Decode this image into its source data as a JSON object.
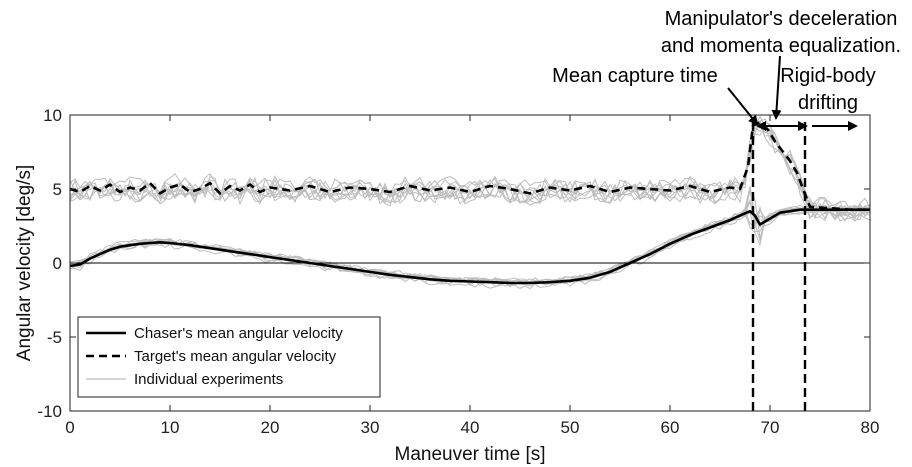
{
  "chart_data": {
    "type": "line",
    "title": "",
    "xlabel": "Maneuver time [s]",
    "ylabel": "Angular velocity [deg/s]",
    "xlim": [
      0,
      80
    ],
    "ylim": [
      -10,
      10
    ],
    "xticks": [
      0,
      10,
      20,
      30,
      40,
      50,
      60,
      70,
      80
    ],
    "yticks": [
      -10,
      -5,
      0,
      5,
      10
    ],
    "grid": false,
    "legend_position": "bottom-left",
    "legend": [
      "Chaser's mean angular velocity",
      "Target's mean angular velocity",
      "Individual experiments"
    ],
    "series": [
      {
        "name": "Chaser's mean angular velocity",
        "style": "solid",
        "color": "#000000",
        "x": [
          0,
          1,
          2,
          3,
          4,
          5,
          6,
          7,
          8,
          9,
          10,
          12,
          14,
          16,
          18,
          20,
          22,
          24,
          26,
          28,
          30,
          32,
          34,
          36,
          38,
          40,
          42,
          44,
          46,
          48,
          50,
          52,
          54,
          56,
          58,
          60,
          62,
          64,
          66,
          67,
          68,
          68.5,
          69,
          70,
          71,
          72,
          73,
          74,
          76,
          78,
          80
        ],
        "y": [
          -0.2,
          -0.1,
          0.3,
          0.6,
          0.9,
          1.1,
          1.2,
          1.3,
          1.35,
          1.4,
          1.35,
          1.2,
          1.0,
          0.8,
          0.6,
          0.4,
          0.2,
          0.0,
          -0.2,
          -0.4,
          -0.6,
          -0.8,
          -0.95,
          -1.1,
          -1.2,
          -1.25,
          -1.3,
          -1.35,
          -1.35,
          -1.3,
          -1.2,
          -1.0,
          -0.6,
          0.0,
          0.6,
          1.3,
          1.9,
          2.4,
          2.9,
          3.2,
          3.5,
          3.2,
          2.6,
          3.0,
          3.4,
          3.5,
          3.6,
          3.6,
          3.6,
          3.6,
          3.6
        ]
      },
      {
        "name": "Target's mean angular velocity",
        "style": "dashed",
        "color": "#000000",
        "x": [
          0,
          1,
          2,
          3,
          4,
          5,
          6,
          7,
          8,
          9,
          10,
          11,
          12,
          13,
          14,
          15,
          16,
          17,
          18,
          19,
          20,
          22,
          24,
          26,
          28,
          30,
          32,
          34,
          36,
          38,
          40,
          42,
          44,
          46,
          48,
          50,
          52,
          54,
          56,
          58,
          60,
          62,
          64,
          66,
          67,
          67.8,
          68.3,
          69,
          69.8,
          70.5,
          71.2,
          72,
          72.7,
          73.3,
          74,
          76,
          78,
          80
        ],
        "y": [
          5.0,
          4.8,
          5.2,
          4.9,
          5.3,
          4.8,
          5.1,
          4.9,
          5.4,
          4.7,
          5.1,
          5.3,
          4.8,
          5.0,
          5.4,
          4.7,
          5.2,
          4.9,
          5.3,
          4.8,
          5.1,
          4.9,
          5.2,
          4.8,
          5.1,
          5.0,
          4.8,
          5.2,
          4.9,
          5.1,
          4.8,
          5.2,
          5.0,
          4.7,
          5.1,
          4.9,
          5.2,
          4.8,
          5.1,
          5.0,
          4.9,
          5.2,
          4.8,
          5.1,
          5.0,
          6.5,
          9.3,
          9.5,
          9.0,
          8.2,
          7.6,
          6.9,
          6.1,
          5.0,
          3.8,
          3.7,
          3.6,
          3.6
        ]
      },
      {
        "name": "Individual experiments",
        "style": "thin",
        "color": "#bdbdbd",
        "description_values": "many overlapping noisy traces around both mean curves"
      }
    ],
    "vertical_markers": [
      68.3,
      73.5
    ],
    "annotations": {
      "capture": "Mean capture time",
      "decel_line1": "Manipulator's deceleration",
      "decel_line2": "and momenta equalization.",
      "rigid_line1": "Rigid-body",
      "rigid_line2": "drifting"
    },
    "colors": {
      "mean": "#000000",
      "individual": "#bdbdbd",
      "zero_line": "#000000"
    }
  }
}
